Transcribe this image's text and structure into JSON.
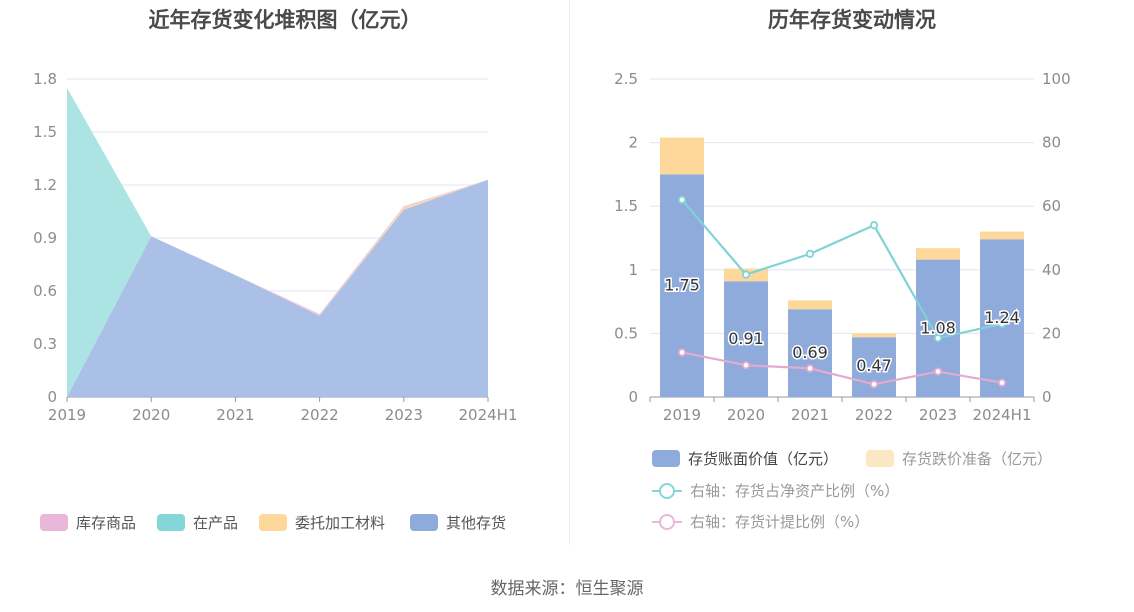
{
  "left_chart": {
    "title": "近年存货变化堆积图（亿元）",
    "legend": [
      {
        "label": "库存商品",
        "color": "#e9b7d9"
      },
      {
        "label": "在产品",
        "color": "#85d6d8"
      },
      {
        "label": "委托加工材料",
        "color": "#fdd89a"
      },
      {
        "label": "其他存货",
        "color": "#8eabdc"
      }
    ]
  },
  "right_chart": {
    "title": "历年存货变动情况",
    "legend": [
      {
        "label": "存货账面价值（亿元）",
        "color": "#8eabdc"
      },
      {
        "label": "存货跌价准备（亿元）",
        "color": "#fde6c2"
      },
      {
        "label": "右轴：存货占净资产比例（%）",
        "color": "#85d6d8"
      },
      {
        "label": "右轴：存货计提比例（%）",
        "color": "#e9b7d9"
      }
    ]
  },
  "source": "数据来源：恒生聚源",
  "chart_data": [
    {
      "type": "area",
      "stacked": true,
      "title": "近年存货变化堆积图（亿元）",
      "categories": [
        "2019",
        "2020",
        "2021",
        "2022",
        "2023",
        "2024H1"
      ],
      "ylim": [
        0,
        1.8
      ],
      "yticks": [
        "0",
        "0.3",
        "0.6",
        "0.9",
        "1.2",
        "1.5",
        "1.8"
      ],
      "series": [
        {
          "name": "其他存货",
          "values": [
            0,
            0.91,
            0.69,
            0.46,
            1.06,
            1.23
          ],
          "color": "#a6bde5"
        },
        {
          "name": "委托加工材料",
          "values": [
            0,
            0,
            0,
            0,
            0.01,
            0.0
          ],
          "color": "#fdd89a"
        },
        {
          "name": "库存商品",
          "values": [
            0,
            0,
            0,
            0.01,
            0.01,
            0.0
          ],
          "color": "#f2c6d6"
        },
        {
          "name": "在产品",
          "values": [
            1.75,
            0,
            0,
            0,
            0,
            0
          ],
          "color": "#a8e1e2"
        }
      ],
      "grid": true,
      "legend_position": "bottom"
    },
    {
      "type": "bar",
      "title": "历年存货变动情况",
      "categories": [
        "2019",
        "2020",
        "2021",
        "2022",
        "2023",
        "2024H1"
      ],
      "ylim": [
        0,
        2.5
      ],
      "yticks": [
        "0",
        "0.5",
        "1",
        "1.5",
        "2",
        "2.5"
      ],
      "y2lim": [
        0,
        100
      ],
      "y2ticks": [
        "0",
        "20",
        "40",
        "60",
        "80",
        "100"
      ],
      "bar_series": [
        {
          "name": "存货账面价值（亿元）",
          "values": [
            1.75,
            0.91,
            0.69,
            0.47,
            1.08,
            1.24
          ],
          "labels": [
            "1.75",
            "0.91",
            "0.69",
            "0.47",
            "1.08",
            "1.24"
          ],
          "color": "#8eabdc"
        },
        {
          "name": "存货跌价准备（亿元）",
          "values": [
            0.29,
            0.1,
            0.07,
            0.03,
            0.09,
            0.06
          ],
          "color": "#fdd89a"
        }
      ],
      "line_series": [
        {
          "name": "右轴：存货占净资产比例（%）",
          "axis": "right",
          "values": [
            62,
            38.5,
            45,
            54,
            18.5,
            23
          ],
          "color": "#7fd3d5"
        },
        {
          "name": "右轴：存货计提比例（%）",
          "axis": "right",
          "values": [
            14,
            10,
            9,
            4,
            8,
            4.5
          ],
          "color": "#e6a9cf"
        }
      ],
      "grid": true,
      "legend_position": "bottom"
    }
  ]
}
